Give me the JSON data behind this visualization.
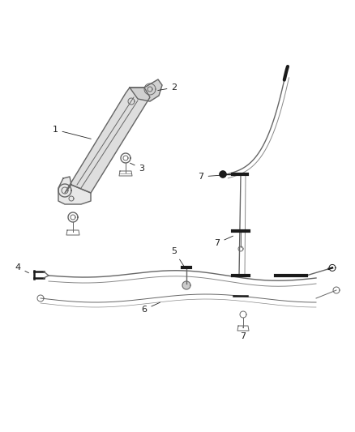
{
  "background_color": "#ffffff",
  "line_color": "#666666",
  "dark_line_color": "#1a1a1a",
  "mid_color": "#888888",
  "label_color": "#222222",
  "figsize": [
    4.38,
    5.33
  ],
  "dpi": 100
}
